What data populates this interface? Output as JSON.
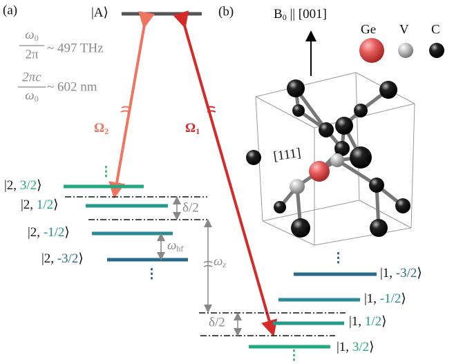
{
  "panel_a": {
    "label": "(a)",
    "excited_state": {
      "open": "|A",
      "close": "⟩"
    },
    "frequency": {
      "num": "ω",
      "num_sub": "0",
      "den": "2π",
      "value": "~ 497 THz"
    },
    "wavelength": {
      "num": "2πc",
      "den": "ω",
      "den_sub": "0",
      "value": "~ 602 nm"
    },
    "omega2": {
      "symbol": "Ω",
      "sub": "2"
    },
    "omega1": {
      "symbol": "Ω",
      "sub": "1"
    },
    "upper_levels": [
      {
        "open": "|2, ",
        "spin": "3/2",
        "close": "⟩"
      },
      {
        "open": "|2, ",
        "spin": "1/2",
        "close": "⟩"
      },
      {
        "open": "|2, ",
        "spin": "-1/2",
        "close": "⟩"
      },
      {
        "open": "|2, ",
        "spin": "-3/2",
        "close": "⟩"
      }
    ],
    "lower_levels": [
      {
        "open": "|1, ",
        "spin": "-3/2",
        "close": "⟩"
      },
      {
        "open": "|1, ",
        "spin": "-1/2",
        "close": "⟩"
      },
      {
        "open": "|1, ",
        "spin": "1/2",
        "close": "⟩"
      },
      {
        "open": "|1, ",
        "spin": "3/2",
        "close": "⟩"
      }
    ],
    "delta_upper": "δ/2",
    "delta_lower": "δ/2",
    "hyperfine": {
      "symbol": "ω",
      "sub": "hf"
    },
    "zeeman": {
      "symbol": "ω",
      "sub": "z"
    }
  },
  "panel_b": {
    "label": "(b)",
    "field": {
      "symbol": "B",
      "sub": "0",
      "rest": " || [001]"
    },
    "legend": [
      "Ge",
      "V",
      "C"
    ],
    "direction": "[111]"
  }
}
